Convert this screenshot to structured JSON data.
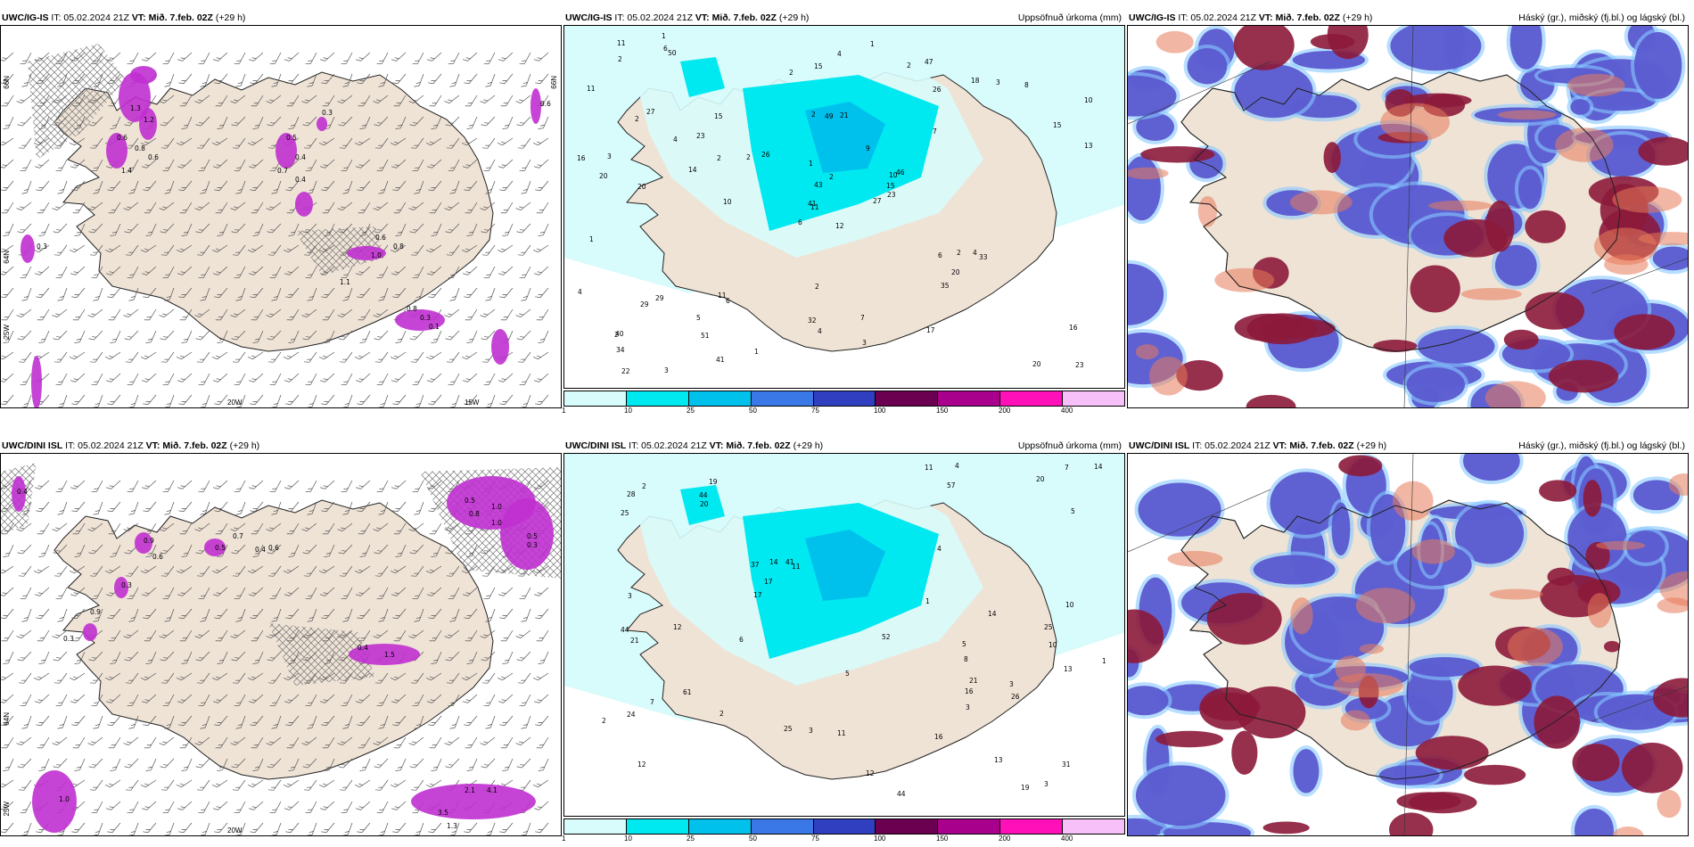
{
  "panels": [
    {
      "model": "UWC/IG-IS",
      "it": "IT: 05.02.2024 21Z",
      "vt_label": "VT: Mið. 7.feb. 02Z",
      "lead": "(+29 h)",
      "right_title": "",
      "lon_labels": [
        "20W",
        "15W"
      ],
      "lat_labels": [
        "25W",
        "66N",
        "64N",
        "66N"
      ]
    },
    {
      "model": "UWC/IG-IS",
      "it": "IT: 05.02.2024 21Z",
      "vt_label": "VT: Mið. 7.feb. 02Z",
      "lead": "(+29 h)",
      "right_title": "Uppsöfnuð úrkoma (mm)"
    },
    {
      "model": "UWC/IG-IS",
      "it": "IT: 05.02.2024 21Z",
      "vt_label": "VT: Mið. 7.feb. 02Z",
      "lead": "(+29 h)",
      "right_title": "Háský (gr.), miðský (fj.bl.) og lágský (bl.)"
    },
    {
      "model": "UWC/DINI ISL",
      "it": "IT: 05.02.2024 21Z",
      "vt_label": "VT: Mið. 7.feb. 02Z",
      "lead": "(+29 h)",
      "right_title": "",
      "lon_labels": [
        "20W"
      ],
      "lat_labels": [
        "25W",
        "64N"
      ]
    },
    {
      "model": "UWC/DINI ISL",
      "it": "IT: 05.02.2024 21Z",
      "vt_label": "VT: Mið. 7.feb. 02Z",
      "lead": "(+29 h)",
      "right_title": "Uppsöfnuð úrkoma (mm)"
    },
    {
      "model": "UWC/DINI ISL",
      "it": "IT: 05.02.2024 21Z",
      "vt_label": "VT: Mið. 7.feb. 02Z",
      "lead": "(+29 h)",
      "right_title": "Háský (gr.), miðský (fj.bl.) og lágský (bl.)"
    }
  ],
  "precip_colorbar": {
    "colors": [
      "#d8fbfb",
      "#00e8f0",
      "#00c0ec",
      "#3a78e8",
      "#2f3fc0",
      "#6b0050",
      "#a8008c",
      "#ff10b8",
      "#f8c0f8"
    ],
    "ticks": [
      "1",
      "10",
      "25",
      "50",
      "75",
      "100",
      "150",
      "200",
      "400"
    ]
  },
  "precip_labels_top": [
    "12",
    "2",
    "11",
    "40",
    "10",
    "6",
    "47",
    "21",
    "26",
    "27",
    "50",
    "23",
    "20",
    "10",
    "6",
    "7",
    "3",
    "2",
    "9",
    "29",
    "26",
    "34",
    "51",
    "49",
    "46",
    "33",
    "27",
    "15",
    "20",
    "6",
    "13",
    "41",
    "32",
    "43",
    "15",
    "18",
    "11",
    "20",
    "16",
    "4",
    "1",
    "2",
    "14",
    "35",
    "41",
    "16",
    "15",
    "22",
    "4",
    "23",
    "29",
    "15",
    "11",
    "20",
    "17",
    "5",
    "6",
    "11",
    "7",
    "8",
    "4",
    "10",
    "3",
    "23",
    "3",
    "1",
    "2",
    "2",
    "2",
    "4",
    "2",
    "1",
    "2",
    "2",
    "2",
    "2",
    "4",
    "1",
    "1",
    "3"
  ],
  "precip_labels_bottom": [
    "8",
    "10",
    "12",
    "19",
    "11",
    "13",
    "24",
    "57",
    "37",
    "44",
    "25",
    "44",
    "28",
    "31",
    "25",
    "10",
    "5",
    "52",
    "41",
    "61",
    "14",
    "20",
    "17",
    "13",
    "11",
    "44",
    "21",
    "21",
    "20",
    "14",
    "12",
    "16",
    "17",
    "6",
    "25",
    "26",
    "16",
    "12",
    "11",
    "7",
    "5",
    "4",
    "3",
    "3",
    "3",
    "2",
    "2",
    "2",
    "1",
    "3",
    "1",
    "14",
    "7",
    "5",
    "3",
    "19",
    "4"
  ],
  "wind_labels_top": [
    "1.3",
    "1.2",
    "0.6",
    "0.8",
    "0.6",
    "0.5",
    "0.4",
    "0.7",
    "0.6",
    "0.8",
    "1.0",
    "0.3",
    "0.1",
    "0.3",
    "0.6",
    "1.4",
    "1.1",
    "0.8",
    "0.4",
    "0.3"
  ],
  "wind_labels_bottom": [
    "0.4",
    "0.9",
    "0.5",
    "1.0",
    "0.8",
    "0.5",
    "0.4",
    "0.6",
    "0.7",
    "0.6",
    "0.3",
    "0.9",
    "0.3",
    "1.0",
    "0.5",
    "0.3",
    "0.4",
    "1.5",
    "2.1",
    "4.1",
    "3.5",
    "1.0",
    "1.3"
  ]
}
